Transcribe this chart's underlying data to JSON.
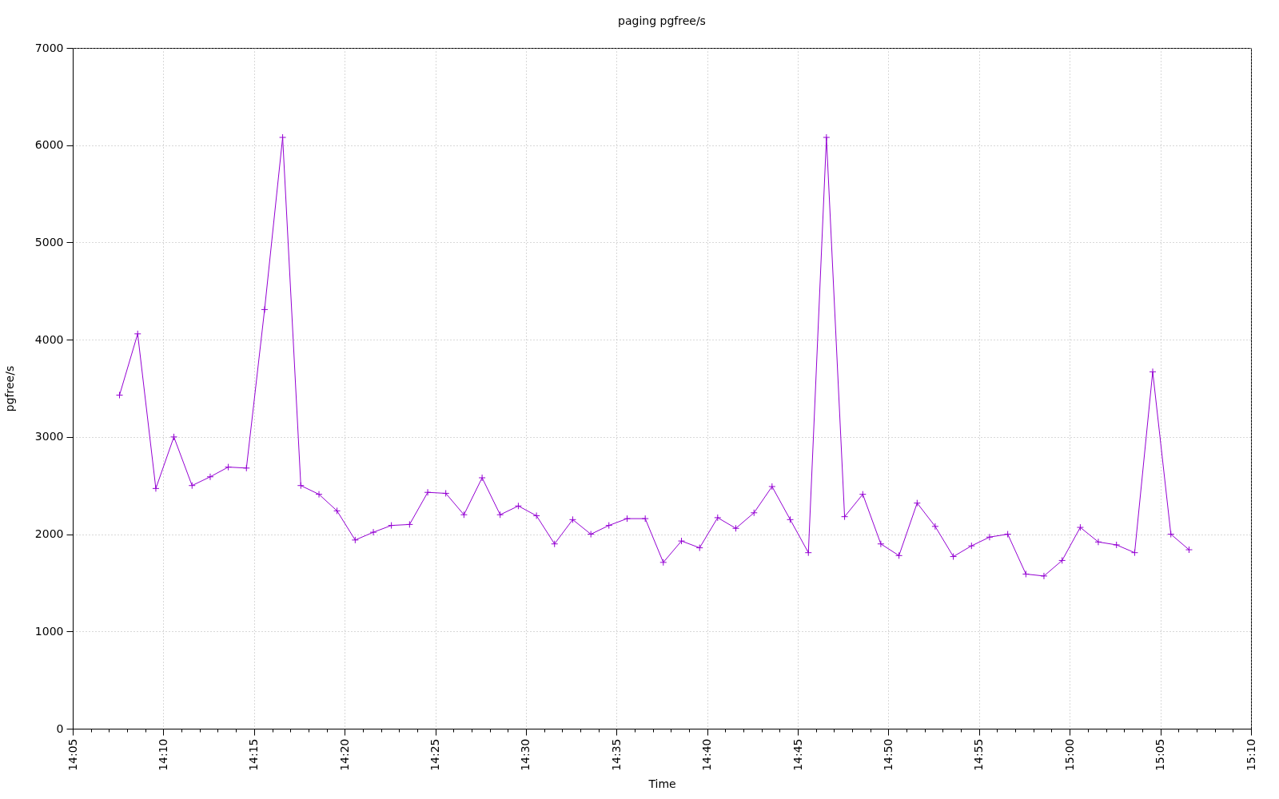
{
  "chart_data": {
    "type": "line",
    "title": "paging  pgfree/s",
    "xlabel": "Time",
    "ylabel": "pgfree/s",
    "x": [
      14.1263,
      14.143,
      14.1597,
      14.1763,
      14.193,
      14.2097,
      14.2263,
      14.243,
      14.2597,
      14.2763,
      14.293,
      14.3097,
      14.3263,
      14.343,
      14.3597,
      14.3763,
      14.393,
      14.4097,
      14.4263,
      14.443,
      14.4597,
      14.4763,
      14.493,
      14.5097,
      14.5263,
      14.543,
      14.5597,
      14.5763,
      14.593,
      14.6097,
      14.6263,
      14.643,
      14.6597,
      14.6763,
      14.693,
      14.7097,
      14.7263,
      14.743,
      14.7597,
      14.7763,
      14.793,
      14.8097,
      14.8263,
      14.843,
      14.8597,
      14.8763,
      14.893,
      14.9097,
      14.9263,
      14.943,
      14.9597,
      14.9763,
      14.993,
      15.0097,
      15.0263,
      15.043,
      15.0597,
      15.0763,
      15.093,
      15.1097
    ],
    "series": [
      {
        "color": "#9400d3",
        "values": [
          3430,
          4060,
          2470,
          3000,
          2500,
          2590,
          2690,
          2680,
          4310,
          6080,
          2500,
          2410,
          2240,
          1940,
          2020,
          2090,
          2100,
          2430,
          2420,
          2200,
          2580,
          2200,
          2290,
          2190,
          1900,
          2150,
          2000,
          2090,
          2160,
          2160,
          1710,
          1930,
          1860,
          2170,
          2060,
          2220,
          2490,
          2150,
          1810,
          6080,
          2180,
          2410,
          1900,
          1780,
          2320,
          2080,
          1770,
          1880,
          1970,
          2000,
          1590,
          1570,
          1730,
          2070,
          1920,
          1890,
          1810,
          3670,
          2000,
          1840
        ]
      }
    ],
    "xlim": [
      14.0833,
      15.1667
    ],
    "xticks": [
      {
        "value": 14.0833,
        "label": "14:05"
      },
      {
        "value": 14.1,
        "label": null
      },
      {
        "value": 14.1167,
        "label": null
      },
      {
        "value": 14.1333,
        "label": null
      },
      {
        "value": 14.15,
        "label": null
      },
      {
        "value": 14.1667,
        "label": "14:10"
      },
      {
        "value": 14.1833,
        "label": null
      },
      {
        "value": 14.2,
        "label": null
      },
      {
        "value": 14.2167,
        "label": null
      },
      {
        "value": 14.2333,
        "label": null
      },
      {
        "value": 14.25,
        "label": "14:15"
      },
      {
        "value": 14.2667,
        "label": null
      },
      {
        "value": 14.2833,
        "label": null
      },
      {
        "value": 14.3,
        "label": null
      },
      {
        "value": 14.3167,
        "label": null
      },
      {
        "value": 14.3333,
        "label": "14:20"
      },
      {
        "value": 14.35,
        "label": null
      },
      {
        "value": 14.3667,
        "label": null
      },
      {
        "value": 14.3833,
        "label": null
      },
      {
        "value": 14.4,
        "label": null
      },
      {
        "value": 14.4167,
        "label": "14:25"
      },
      {
        "value": 14.4333,
        "label": null
      },
      {
        "value": 14.45,
        "label": null
      },
      {
        "value": 14.4667,
        "label": null
      },
      {
        "value": 14.4833,
        "label": null
      },
      {
        "value": 14.5,
        "label": "14:30"
      },
      {
        "value": 14.5167,
        "label": null
      },
      {
        "value": 14.5333,
        "label": null
      },
      {
        "value": 14.55,
        "label": null
      },
      {
        "value": 14.5667,
        "label": null
      },
      {
        "value": 14.5833,
        "label": "14:35"
      },
      {
        "value": 14.6,
        "label": null
      },
      {
        "value": 14.6167,
        "label": null
      },
      {
        "value": 14.6333,
        "label": null
      },
      {
        "value": 14.65,
        "label": null
      },
      {
        "value": 14.6667,
        "label": "14:40"
      },
      {
        "value": 14.6833,
        "label": null
      },
      {
        "value": 14.7,
        "label": null
      },
      {
        "value": 14.7167,
        "label": null
      },
      {
        "value": 14.7333,
        "label": null
      },
      {
        "value": 14.75,
        "label": "14:45"
      },
      {
        "value": 14.7667,
        "label": null
      },
      {
        "value": 14.7833,
        "label": null
      },
      {
        "value": 14.8,
        "label": null
      },
      {
        "value": 14.8167,
        "label": null
      },
      {
        "value": 14.8333,
        "label": "14:50"
      },
      {
        "value": 14.85,
        "label": null
      },
      {
        "value": 14.8667,
        "label": null
      },
      {
        "value": 14.8833,
        "label": null
      },
      {
        "value": 14.9,
        "label": null
      },
      {
        "value": 14.9167,
        "label": "14:55"
      },
      {
        "value": 14.9333,
        "label": null
      },
      {
        "value": 14.95,
        "label": null
      },
      {
        "value": 14.9667,
        "label": null
      },
      {
        "value": 14.9833,
        "label": null
      },
      {
        "value": 15,
        "label": "15:00"
      },
      {
        "value": 15.0167,
        "label": null
      },
      {
        "value": 15.0333,
        "label": null
      },
      {
        "value": 15.05,
        "label": null
      },
      {
        "value": 15.0667,
        "label": null
      },
      {
        "value": 15.0833,
        "label": "15:05"
      },
      {
        "value": 15.1,
        "label": null
      },
      {
        "value": 15.1167,
        "label": null
      },
      {
        "value": 15.1333,
        "label": null
      },
      {
        "value": 15.15,
        "label": null
      },
      {
        "value": 15.1667,
        "label": "15:10"
      }
    ],
    "ylim": [
      0,
      7000
    ],
    "yticks": [
      0,
      1000,
      2000,
      3000,
      4000,
      5000,
      6000,
      7000
    ],
    "grid": true,
    "marker": "cross",
    "line_style": "solid"
  }
}
